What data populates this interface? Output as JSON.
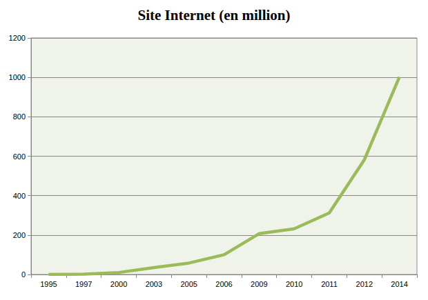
{
  "chart_data": {
    "type": "line",
    "title": "Site Internet (en million)",
    "categories": [
      "1995",
      "1997",
      "2000",
      "2003",
      "2005",
      "2006",
      "2009",
      "2010",
      "2011",
      "2012",
      "2014"
    ],
    "values": [
      0,
      2,
      10,
      35,
      58,
      100,
      207,
      232,
      312,
      582,
      1002
    ],
    "color": "#9bbb59",
    "ylim": [
      0,
      1200
    ],
    "yticks": [
      0,
      200,
      400,
      600,
      800,
      1000,
      1200
    ],
    "grid": true
  }
}
